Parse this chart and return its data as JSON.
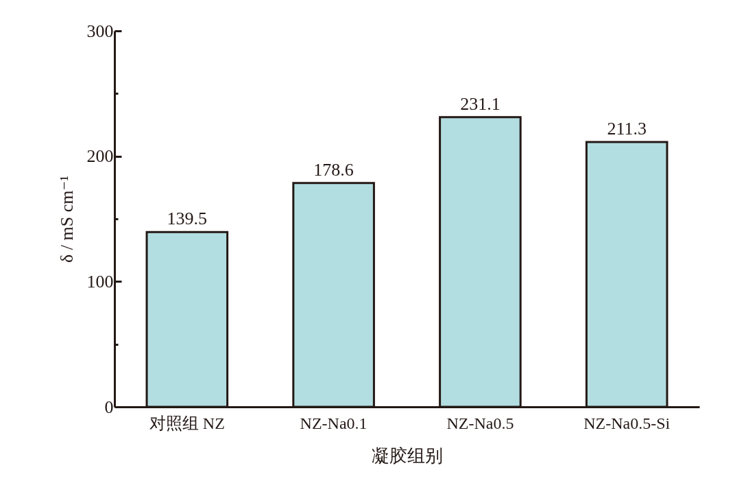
{
  "chart_data": {
    "type": "bar",
    "xlabel": "凝胶组别",
    "ylabel": "δ / mS cm⁻¹",
    "categories": [
      "对照组 NZ",
      "NZ-Na0.1",
      "NZ-Na0.5",
      "NZ-Na0.5-Si"
    ],
    "values": [
      139.5,
      178.6,
      231.1,
      211.3
    ],
    "color": "#b3dee1",
    "ylim": [
      0,
      300
    ],
    "yticks": [
      0,
      {
        "value": 50,
        "label": null
      },
      100,
      {
        "value": 150,
        "label": null
      },
      200,
      {
        "value": 250,
        "label": null
      },
      300
    ],
    "data_labels": true,
    "grid": false
  }
}
